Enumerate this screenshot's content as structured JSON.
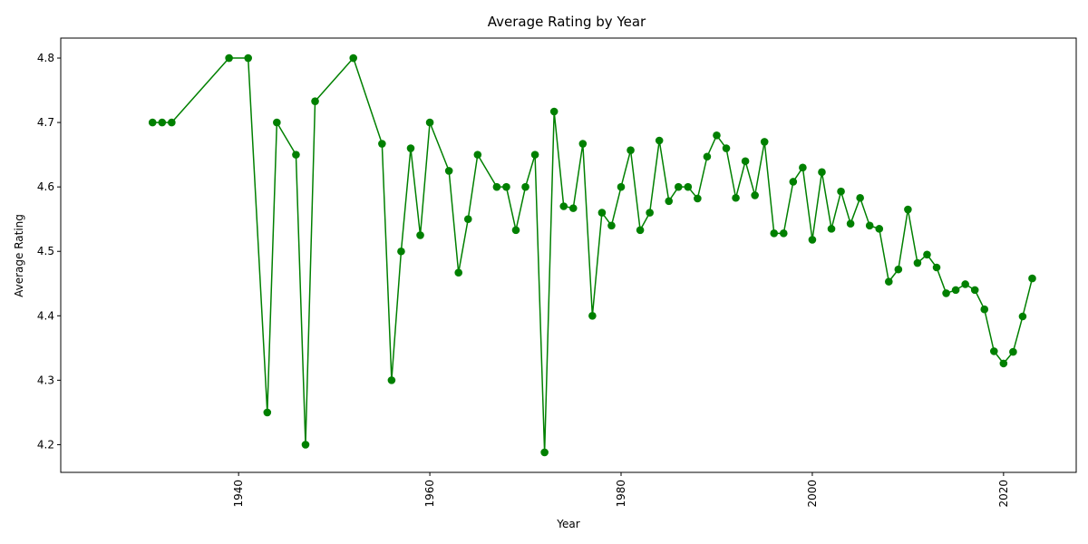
{
  "chart_data": {
    "type": "line",
    "title": "Average Rating by Year",
    "xlabel": "Year",
    "ylabel": "Average Rating",
    "xlim": [
      1921.4,
      2027.6
    ],
    "ylim": [
      4.157,
      4.831
    ],
    "xticks": [
      1940,
      1960,
      1980,
      2000,
      2020
    ],
    "yticks": [
      4.2,
      4.3,
      4.4,
      4.5,
      4.6,
      4.7,
      4.8
    ],
    "xtick_rotation": 90,
    "grid": false,
    "line_color": "#008000",
    "marker": "circle",
    "series": [
      {
        "x": [
          1931,
          1932,
          1933,
          1939,
          1941,
          1943,
          1944,
          1946,
          1947,
          1948,
          1952,
          1955,
          1956,
          1957,
          1958,
          1959,
          1960,
          1962,
          1963,
          1964,
          1965,
          1967,
          1968,
          1969,
          1970,
          1971,
          1972,
          1973,
          1974,
          1975,
          1976,
          1977,
          1978,
          1979,
          1980,
          1981,
          1982,
          1983,
          1984,
          1985,
          1986,
          1987,
          1988,
          1989,
          1990,
          1991,
          1992,
          1993,
          1994,
          1995,
          1996,
          1997,
          1998,
          1999,
          2000,
          2001,
          2002,
          2003,
          2004,
          2005,
          2006,
          2007,
          2008,
          2009,
          2010,
          2011,
          2012,
          2013,
          2014,
          2015,
          2016,
          2017,
          2018,
          2019,
          2020,
          2021,
          2022,
          2023
        ],
        "y": [
          4.7,
          4.7,
          4.7,
          4.8,
          4.8,
          4.25,
          4.7,
          4.65,
          4.2,
          4.733,
          4.8,
          4.667,
          4.3,
          4.5,
          4.66,
          4.525,
          4.7,
          4.625,
          4.467,
          4.55,
          4.65,
          4.6,
          4.6,
          4.533,
          4.6,
          4.65,
          4.188,
          4.717,
          4.57,
          4.567,
          4.667,
          4.4,
          4.56,
          4.54,
          4.6,
          4.657,
          4.533,
          4.56,
          4.672,
          4.578,
          4.6,
          4.6,
          4.582,
          4.647,
          4.68,
          4.66,
          4.583,
          4.64,
          4.587,
          4.67,
          4.528,
          4.528,
          4.608,
          4.63,
          4.518,
          4.623,
          4.535,
          4.593,
          4.543,
          4.583,
          4.54,
          4.535,
          4.453,
          4.472,
          4.565,
          4.482,
          4.495,
          4.475,
          4.435,
          4.44,
          4.449,
          4.44,
          4.41,
          4.345,
          4.326,
          4.344,
          4.399,
          4.458
        ]
      }
    ]
  }
}
